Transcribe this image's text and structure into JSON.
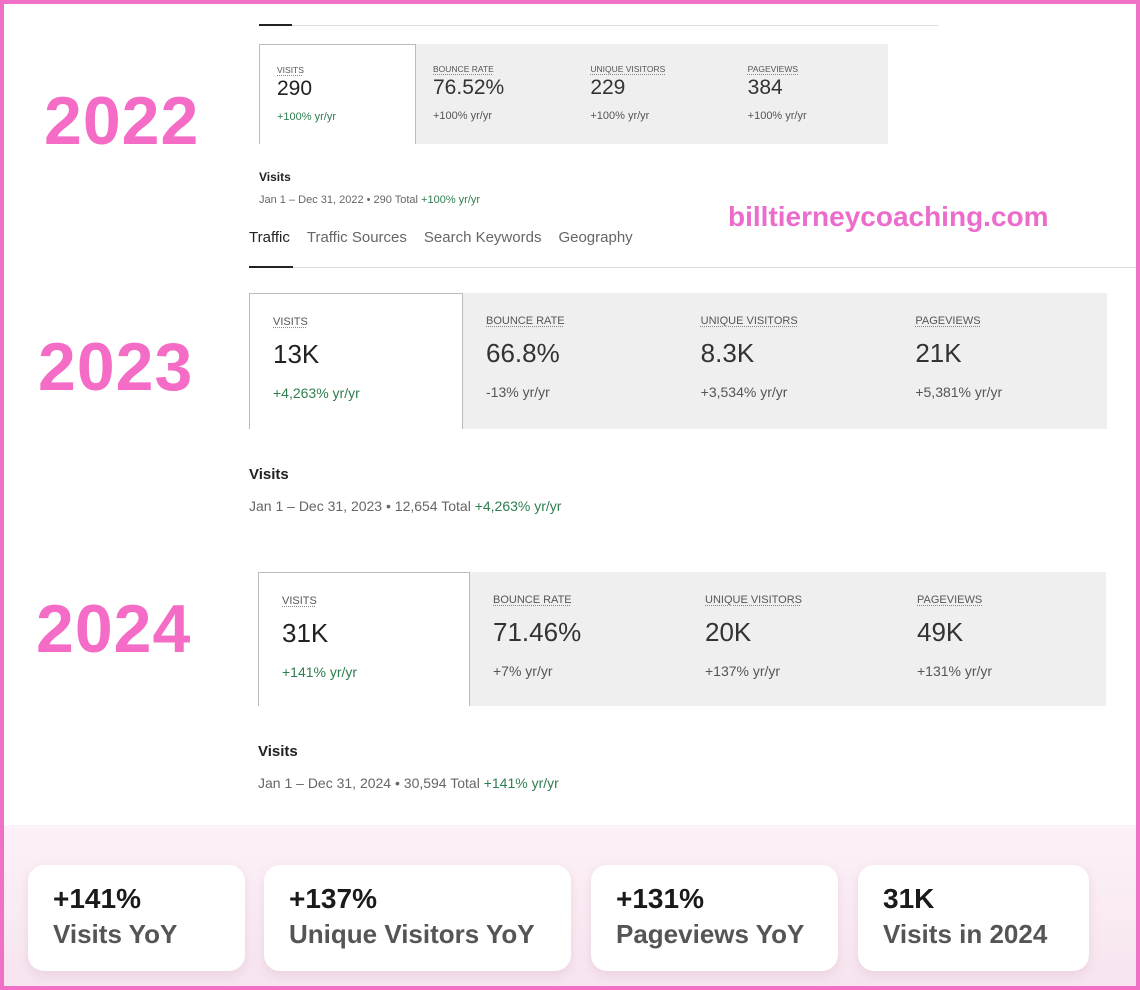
{
  "brand": {
    "watermark": "billtierneycoaching.com",
    "accent": "#f46cc6"
  },
  "tabs": [
    "Traffic",
    "Traffic Sources",
    "Search Keywords",
    "Geography"
  ],
  "years": [
    {
      "year": "2022",
      "metrics": [
        {
          "label": "VISITS",
          "value": "290",
          "change": "+100% yr/yr"
        },
        {
          "label": "BOUNCE RATE",
          "value": "76.52%",
          "change": "+100% yr/yr"
        },
        {
          "label": "UNIQUE VISITORS",
          "value": "229",
          "change": "+100% yr/yr"
        },
        {
          "label": "PAGEVIEWS",
          "value": "384",
          "change": "+100% yr/yr"
        }
      ],
      "visits_title": "Visits",
      "range": "Jan 1 – Dec 31, 2022 • 290 Total",
      "range_change": "+100% yr/yr"
    },
    {
      "year": "2023",
      "metrics": [
        {
          "label": "VISITS",
          "value": "13K",
          "change": "+4,263% yr/yr"
        },
        {
          "label": "BOUNCE RATE",
          "value": "66.8%",
          "change": "-13% yr/yr"
        },
        {
          "label": "UNIQUE VISITORS",
          "value": "8.3K",
          "change": "+3,534% yr/yr"
        },
        {
          "label": "PAGEVIEWS",
          "value": "21K",
          "change": "+5,381% yr/yr"
        }
      ],
      "visits_title": "Visits",
      "range": "Jan 1 – Dec 31, 2023 • 12,654 Total",
      "range_change": "+4,263% yr/yr"
    },
    {
      "year": "2024",
      "metrics": [
        {
          "label": "VISITS",
          "value": "31K",
          "change": "+141% yr/yr"
        },
        {
          "label": "BOUNCE RATE",
          "value": "71.46%",
          "change": "+7% yr/yr"
        },
        {
          "label": "UNIQUE VISITORS",
          "value": "20K",
          "change": "+137% yr/yr"
        },
        {
          "label": "PAGEVIEWS",
          "value": "49K",
          "change": "+131% yr/yr"
        }
      ],
      "visits_title": "Visits",
      "range": "Jan 1 – Dec 31, 2024 • 30,594 Total",
      "range_change": "+141% yr/yr"
    }
  ],
  "summary": [
    {
      "value": "+141%",
      "label": "Visits YoY"
    },
    {
      "value": "+137%",
      "label": "Unique Visitors YoY"
    },
    {
      "value": "+131%",
      "label": "Pageviews YoY"
    },
    {
      "value": "31K",
      "label": "Visits in 2024"
    }
  ]
}
